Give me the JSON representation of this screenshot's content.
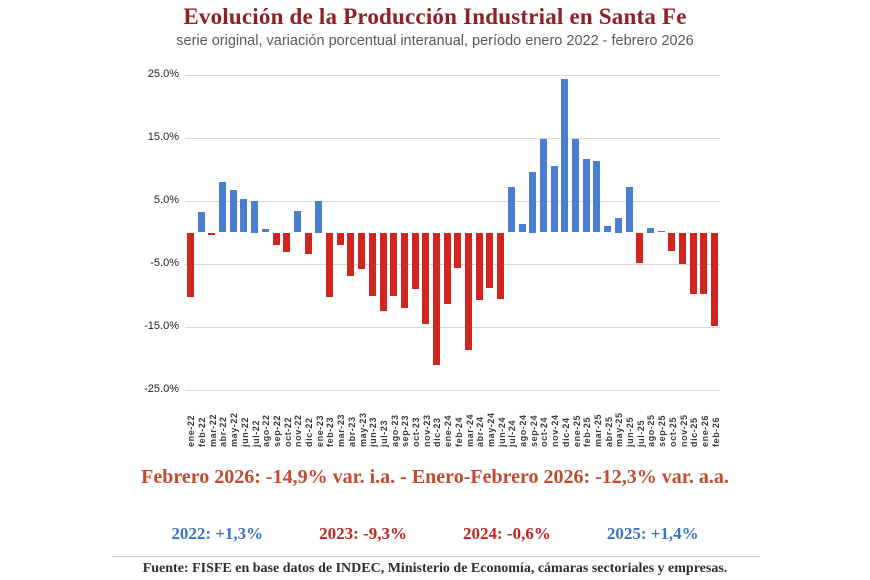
{
  "header": {
    "title": "Evolución de la Producción Industrial en Santa Fe",
    "subtitle": "serie original, variación porcentual interanual, período enero 2022 - febrero 2026"
  },
  "chart_data": {
    "type": "bar",
    "title": "Evolución de la Producción Industrial en Santa Fe",
    "xlabel": "",
    "ylabel": "variación porcentual interanual",
    "ylim": [
      -25,
      25
    ],
    "grid": true,
    "legend_position": "none",
    "positive_color": "#4a7ed0",
    "negative_color": "#d42420",
    "yticks": [
      25,
      15,
      5,
      -5,
      -15,
      -25
    ],
    "ytick_labels": [
      "25.0%",
      "15.0%",
      "5.0%",
      "-5.0%",
      "-15.0%",
      "-25.0%"
    ],
    "categories": [
      "ene-22",
      "feb-22",
      "mar-22",
      "abr-22",
      "may-22",
      "jun-22",
      "jul-22",
      "ago-22",
      "sep-22",
      "oct-22",
      "nov-22",
      "dic-22",
      "ene-23",
      "feb-23",
      "mar-23",
      "abr-23",
      "may-23",
      "jun-23",
      "jul-23",
      "ago-23",
      "sep-23",
      "oct-23",
      "nov-23",
      "dic-23",
      "ene-24",
      "feb-24",
      "mar-24",
      "abr-24",
      "may-24",
      "jun-24",
      "jul-24",
      "ago-24",
      "sep-24",
      "oct-24",
      "nov-24",
      "dic-24",
      "ene-25",
      "feb-25",
      "mar-25",
      "abr-25",
      "may-25",
      "jun-25",
      "jul-25",
      "ago-25",
      "sep-25",
      "oct-25",
      "nov-25",
      "dic-25",
      "ene-26",
      "feb-26"
    ],
    "values": [
      -10.3,
      3.3,
      -0.4,
      8.0,
      6.8,
      5.3,
      5.0,
      0.6,
      -1.9,
      -3.1,
      3.4,
      -3.4,
      5.0,
      -10.3,
      -2.0,
      -6.9,
      -5.8,
      -10.0,
      -12.4,
      -10.1,
      -11.9,
      -9.0,
      -14.5,
      -21.0,
      -11.4,
      -5.6,
      -18.6,
      -10.7,
      -8.8,
      -10.5,
      7.2,
      1.3,
      9.6,
      14.8,
      10.5,
      24.4,
      14.8,
      11.7,
      11.3,
      1.1,
      2.3,
      7.2,
      -4.9,
      0.8,
      0.2,
      -2.9,
      -5.0,
      -9.7,
      -9.7,
      -14.9
    ]
  },
  "annotations": {
    "headline": "Febrero 2026: -14,9% var. i.a.  -  Enero-Febrero 2026: -12,3% var. a.a.",
    "year_summary": [
      {
        "label": "2022: +1,3%",
        "color": "#3b74c6"
      },
      {
        "label": "2023: -9,3%",
        "color": "#c42320"
      },
      {
        "label": "2024: -0,6%",
        "color": "#c42320"
      },
      {
        "label": "2025: +1,4%",
        "color": "#3b74c6"
      }
    ],
    "source": "Fuente: FISFE en base datos de INDEC, Ministerio de Economía, cámaras sectoriales y empresas."
  }
}
